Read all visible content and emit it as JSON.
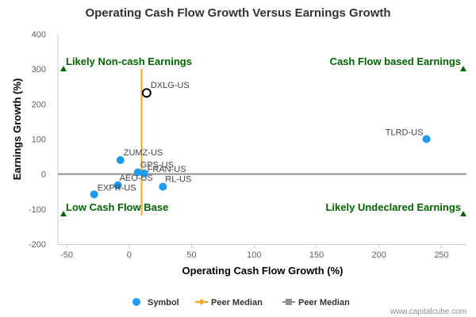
{
  "chart_data": {
    "type": "scatter",
    "title": "Operating Cash Flow Growth Versus Earnings Growth",
    "xlabel": "Operating Cash Flow Growth (%)",
    "ylabel": "Earnings Growth (%)",
    "xlim": [
      -57,
      270
    ],
    "ylim": [
      -200,
      400
    ],
    "xticks": [
      -50,
      0,
      50,
      100,
      150,
      200,
      250
    ],
    "yticks": [
      -200,
      -100,
      0,
      100,
      200,
      300,
      400
    ],
    "grid": false,
    "series": [
      {
        "name": "Symbol",
        "color": "#1e9cf0",
        "points": [
          {
            "label": "DXLG-US",
            "x": 14,
            "y": 232,
            "highlight": true
          },
          {
            "label": "TLRD-US",
            "x": 238,
            "y": 100
          },
          {
            "label": "ZUMZ-US",
            "x": -7,
            "y": 40
          },
          {
            "label": "GPS-US",
            "x": 7,
            "y": 5
          },
          {
            "label": "FRAN-US",
            "x": 12,
            "y": 2
          },
          {
            "label": "AEO-US",
            "x": -9,
            "y": -32
          },
          {
            "label": "RL-US",
            "x": 27,
            "y": -36
          },
          {
            "label": "EXPR-US",
            "x": -28,
            "y": -58
          }
        ]
      },
      {
        "name": "Peer Median",
        "color": "#f5a623",
        "orientation": "vertical",
        "x": 10,
        "y_range": [
          -118,
          300
        ]
      },
      {
        "name": "Peer Median",
        "color": "#909090",
        "orientation": "horizontal",
        "y": 0,
        "x_range": [
          -57,
          270
        ]
      }
    ],
    "quadrant_labels": [
      {
        "text": "Likely Non-cash Earnings",
        "position": "top-left"
      },
      {
        "text": "Cash Flow based Earnings",
        "position": "top-right"
      },
      {
        "text": "Low Cash Flow Base",
        "position": "bottom-left"
      },
      {
        "text": "Likely Undeclared Earnings",
        "position": "bottom-right"
      }
    ],
    "quadrant_color": "#006400",
    "legend_position": "bottom"
  },
  "footer": {
    "credit": "www.capitalcube.com"
  }
}
